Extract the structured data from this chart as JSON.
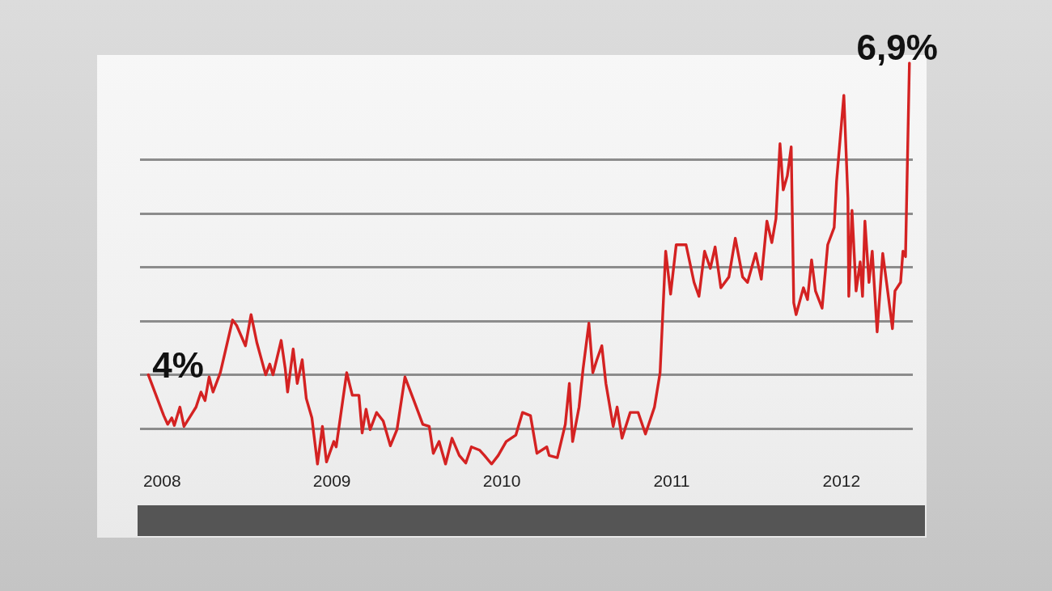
{
  "chart_data": {
    "type": "line",
    "x": [
      2007.919,
      2008.01,
      2008.033,
      2008.057,
      2008.072,
      2008.105,
      2008.129,
      2008.2,
      2008.229,
      2008.253,
      2008.277,
      2008.3,
      2008.343,
      2008.415,
      2008.439,
      2008.491,
      2008.524,
      2008.558,
      2008.61,
      2008.634,
      2008.653,
      2008.701,
      2008.725,
      2008.739,
      2008.772,
      2008.796,
      2008.825,
      2008.849,
      2008.882,
      2008.915,
      2008.944,
      2008.968,
      2009.011,
      2009.025,
      2009.087,
      2009.12,
      2009.159,
      2009.178,
      2009.201,
      2009.225,
      2009.263,
      2009.302,
      2009.344,
      2009.383,
      2009.43,
      2009.478,
      2009.535,
      2009.573,
      2009.597,
      2009.631,
      2009.669,
      2009.707,
      2009.75,
      2009.788,
      2009.821,
      2009.869,
      2009.898,
      2009.94,
      2009.979,
      2010.026,
      2010.083,
      2010.122,
      2010.169,
      2010.207,
      2010.265,
      2010.279,
      2010.327,
      2010.374,
      2010.398,
      2010.417,
      2010.455,
      2010.479,
      2010.513,
      2010.536,
      2010.56,
      2010.589,
      2010.613,
      2010.656,
      2010.679,
      2010.708,
      2010.756,
      2010.803,
      2010.846,
      2010.899,
      2010.932,
      2010.965,
      2010.994,
      2011.027,
      2011.085,
      2011.132,
      2011.161,
      2011.194,
      2011.228,
      2011.256,
      2011.29,
      2011.337,
      2011.375,
      2011.418,
      2011.447,
      2011.495,
      2011.528,
      2011.561,
      2011.59,
      2011.614,
      2011.638,
      2011.657,
      2011.681,
      2011.704,
      2011.719,
      2011.733,
      2011.776,
      2011.8,
      2011.824,
      2011.847,
      2011.886,
      2011.919,
      2011.957,
      2011.971,
      2012.014,
      2012.038,
      2012.043,
      2012.062,
      2012.086,
      2012.11,
      2012.124,
      2012.138,
      2012.162,
      2012.181,
      2012.21,
      2012.243,
      2012.272,
      2012.3,
      2012.315,
      2012.348,
      2012.362,
      2012.377,
      2012.4
    ],
    "series": [
      {
        "color": "#d42222",
        "values": [
          4.0,
          3.62,
          3.54,
          3.6,
          3.53,
          3.7,
          3.52,
          3.7,
          3.84,
          3.76,
          3.98,
          3.84,
          4.02,
          4.51,
          4.46,
          4.27,
          4.56,
          4.3,
          4.0,
          4.1,
          4.0,
          4.32,
          4.06,
          3.84,
          4.24,
          3.92,
          4.14,
          3.78,
          3.6,
          3.17,
          3.52,
          3.19,
          3.38,
          3.33,
          4.02,
          3.81,
          3.81,
          3.46,
          3.68,
          3.49,
          3.65,
          3.57,
          3.34,
          3.49,
          3.98,
          3.78,
          3.54,
          3.52,
          3.27,
          3.38,
          3.17,
          3.41,
          3.25,
          3.18,
          3.33,
          3.3,
          3.25,
          3.17,
          3.25,
          3.38,
          3.44,
          3.65,
          3.62,
          3.27,
          3.33,
          3.25,
          3.23,
          3.54,
          3.92,
          3.38,
          3.7,
          4.06,
          4.48,
          4.02,
          4.14,
          4.27,
          3.92,
          3.52,
          3.7,
          3.41,
          3.65,
          3.65,
          3.45,
          3.7,
          4.02,
          5.15,
          4.75,
          5.21,
          5.21,
          4.86,
          4.73,
          5.15,
          4.99,
          5.19,
          4.81,
          4.91,
          5.27,
          4.91,
          4.86,
          5.13,
          4.89,
          5.43,
          5.23,
          5.45,
          6.15,
          5.72,
          5.85,
          6.12,
          4.67,
          4.56,
          4.81,
          4.7,
          5.07,
          4.78,
          4.62,
          5.21,
          5.37,
          5.8,
          6.6,
          5.64,
          4.73,
          5.53,
          4.78,
          5.05,
          4.73,
          5.43,
          4.86,
          5.15,
          4.4,
          5.13,
          4.78,
          4.43,
          4.78,
          4.86,
          5.15,
          5.1,
          6.9
        ],
        "value_labels": [
          "4%",
          null,
          null,
          null,
          null,
          null,
          null,
          null,
          null,
          null,
          null,
          null,
          null,
          null,
          null,
          null,
          null,
          null,
          null,
          null,
          null,
          null,
          null,
          null,
          null,
          null,
          null,
          null,
          null,
          null,
          null,
          null,
          null,
          null,
          null,
          null,
          null,
          null,
          null,
          null,
          null,
          null,
          null,
          null,
          null,
          null,
          null,
          null,
          null,
          null,
          null,
          null,
          null,
          null,
          null,
          null,
          null,
          null,
          null,
          null,
          null,
          null,
          null,
          null,
          null,
          null,
          null,
          null,
          null,
          null,
          null,
          null,
          null,
          null,
          null,
          null,
          null,
          null,
          null,
          null,
          null,
          null,
          null,
          null,
          null,
          null,
          null,
          null,
          null,
          null,
          null,
          null,
          null,
          null,
          null,
          null,
          null,
          null,
          null,
          null,
          null,
          null,
          null,
          null,
          null,
          null,
          null,
          null,
          null,
          null,
          null,
          null,
          null,
          null,
          null,
          null,
          null,
          null,
          null,
          null,
          null,
          null,
          null,
          null,
          null,
          null,
          null,
          null,
          null,
          null,
          null,
          null,
          null,
          null,
          null,
          null,
          "6,9%"
        ]
      }
    ],
    "xlim": [
      2007.87,
      2012.42
    ],
    "xticks": [
      2008,
      2009,
      2010,
      2011,
      2012
    ],
    "yticks": [
      {
        "value": 3.5,
        "label": null
      },
      {
        "value": 4,
        "label": null
      },
      {
        "value": 4.5,
        "label": null
      },
      {
        "value": 5,
        "label": null
      },
      {
        "value": 5.5,
        "label": null
      },
      {
        "value": 6,
        "label": null
      }
    ],
    "grid": "y",
    "tick_labels": "x"
  }
}
